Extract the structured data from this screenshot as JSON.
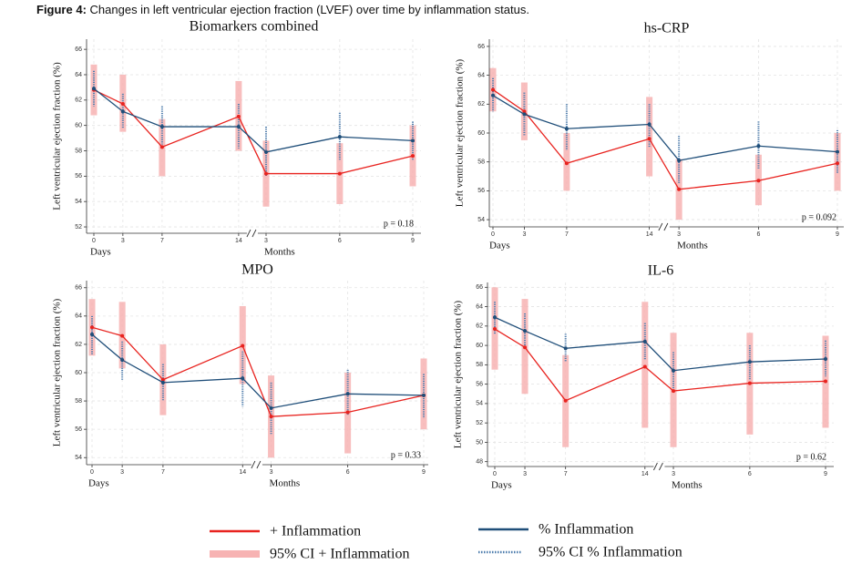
{
  "caption_label": "Figure 4:",
  "caption": "Changes in left ventricular ejection fraction (LVEF) over time by inflammation status.",
  "chart_data": [
    {
      "type": "line",
      "title": "Biomarkers combined",
      "y_label": "Left ventricular ejection fraction (%)",
      "categories": [
        "0",
        "3",
        "7",
        "14",
        "3",
        "6",
        "9"
      ],
      "x_group_labels": [
        "Days",
        "Months"
      ],
      "ylim": [
        51.5,
        66.8
      ],
      "yticks": [
        52,
        54,
        56,
        58,
        60,
        62,
        64,
        66
      ],
      "grid": true,
      "annotation": "p = 0.18",
      "series": [
        {
          "name": "+ Inflammation",
          "ci_name": "95% CI + Inflammation",
          "color": "#e8231f",
          "ci_color": "#f7b3b3",
          "values": [
            62.8,
            61.7,
            58.3,
            60.7,
            56.2,
            56.2,
            57.6
          ],
          "ci_low": [
            60.8,
            59.5,
            56,
            58,
            53.6,
            53.8,
            55.2
          ],
          "ci_high": [
            64.8,
            64,
            60.5,
            63.5,
            58.8,
            58.6,
            60
          ]
        },
        {
          "name": "% Inflammation",
          "ci_name": "95% CI % Inflammation",
          "color": "#1f4e79",
          "ci_color": "#4f7eae",
          "values": [
            62.9,
            61.1,
            59.9,
            59.9,
            57.9,
            59.1,
            58.8
          ],
          "ci_low": [
            61.5,
            59.8,
            58.5,
            58.2,
            56,
            57.3,
            57.3
          ],
          "ci_high": [
            64.3,
            62.5,
            61.5,
            61.7,
            59.9,
            61,
            60.3
          ]
        }
      ]
    },
    {
      "type": "line",
      "title": "hs-CRP",
      "y_label": "Left ventricular ejection fraction (%)",
      "categories": [
        "0",
        "3",
        "7",
        "14",
        "3",
        "6",
        "9"
      ],
      "x_group_labels": [
        "Days",
        "Months"
      ],
      "ylim": [
        53.5,
        66.5
      ],
      "yticks": [
        54,
        56,
        58,
        60,
        62,
        64,
        66
      ],
      "grid": true,
      "annotation": "p = 0.092",
      "series": [
        {
          "color": "#e8231f",
          "ci_color": "#f7b3b3",
          "values": [
            63.0,
            61.5,
            57.9,
            59.6,
            56.1,
            56.7,
            57.9
          ],
          "ci_low": [
            61.5,
            59.5,
            56,
            57,
            54,
            55,
            56
          ],
          "ci_high": [
            64.5,
            63.5,
            60,
            62.5,
            58.2,
            58.5,
            60
          ]
        },
        {
          "color": "#1f4e79",
          "ci_color": "#4f7eae",
          "values": [
            62.6,
            61.3,
            60.3,
            60.6,
            58.1,
            59.1,
            58.7
          ],
          "ci_low": [
            61.5,
            59.8,
            58.8,
            59,
            56.5,
            57.5,
            57.2
          ],
          "ci_high": [
            63.8,
            62.8,
            62,
            62,
            59.8,
            60.8,
            60.2
          ]
        }
      ]
    },
    {
      "type": "line",
      "title": "MPO",
      "y_label": "Left ventricular ejection fraction (%)",
      "categories": [
        "0",
        "3",
        "7",
        "14",
        "3",
        "6",
        "9"
      ],
      "x_group_labels": [
        "Days",
        "Months"
      ],
      "ylim": [
        53.5,
        66.5
      ],
      "yticks": [
        54,
        56,
        58,
        60,
        62,
        64,
        66
      ],
      "grid": true,
      "annotation": "p = 0.33",
      "series": [
        {
          "color": "#e8231f",
          "ci_color": "#f7b3b3",
          "values": [
            63.2,
            62.6,
            59.5,
            61.9,
            56.9,
            57.2,
            58.4
          ],
          "ci_low": [
            61.2,
            60.3,
            57,
            59.2,
            54,
            54.3,
            56
          ],
          "ci_high": [
            65.2,
            65,
            62,
            64.7,
            59.8,
            60,
            61
          ]
        },
        {
          "color": "#1f4e79",
          "ci_color": "#4f7eae",
          "values": [
            62.7,
            60.9,
            59.3,
            59.6,
            57.5,
            58.5,
            58.4
          ],
          "ci_low": [
            61.3,
            59.5,
            58,
            57.6,
            55.6,
            57,
            56.8
          ],
          "ci_high": [
            64,
            62.2,
            60.6,
            61.5,
            59.3,
            60.2,
            59.9
          ]
        }
      ]
    },
    {
      "type": "line",
      "title": "IL-6",
      "y_label": "Left ventricular ejection fraction (%)",
      "categories": [
        "0",
        "3",
        "7",
        "14",
        "3",
        "6",
        "9"
      ],
      "x_group_labels": [
        "Days",
        "Months"
      ],
      "ylim": [
        47.5,
        66.5
      ],
      "yticks": [
        48,
        50,
        52,
        54,
        56,
        58,
        60,
        62,
        64,
        66
      ],
      "grid": true,
      "annotation": "p = 0.62",
      "series": [
        {
          "color": "#e8231f",
          "ci_color": "#f7b3b3",
          "values": [
            61.7,
            59.8,
            54.3,
            57.8,
            55.3,
            56.1,
            56.3
          ],
          "ci_low": [
            57.5,
            55,
            49.5,
            51.5,
            49.5,
            50.8,
            51.5
          ],
          "ci_high": [
            66,
            64.8,
            59,
            64.5,
            61.3,
            61.3,
            61
          ]
        },
        {
          "color": "#1f4e79",
          "ci_color": "#4f7eae",
          "values": [
            62.9,
            61.5,
            59.7,
            60.4,
            57.4,
            58.3,
            58.6
          ],
          "ci_low": [
            61.2,
            59.8,
            58.3,
            58.5,
            55.5,
            56.5,
            56.8
          ],
          "ci_high": [
            64.5,
            63.3,
            61.2,
            62.3,
            59.3,
            60,
            60.5
          ]
        }
      ]
    }
  ]
}
